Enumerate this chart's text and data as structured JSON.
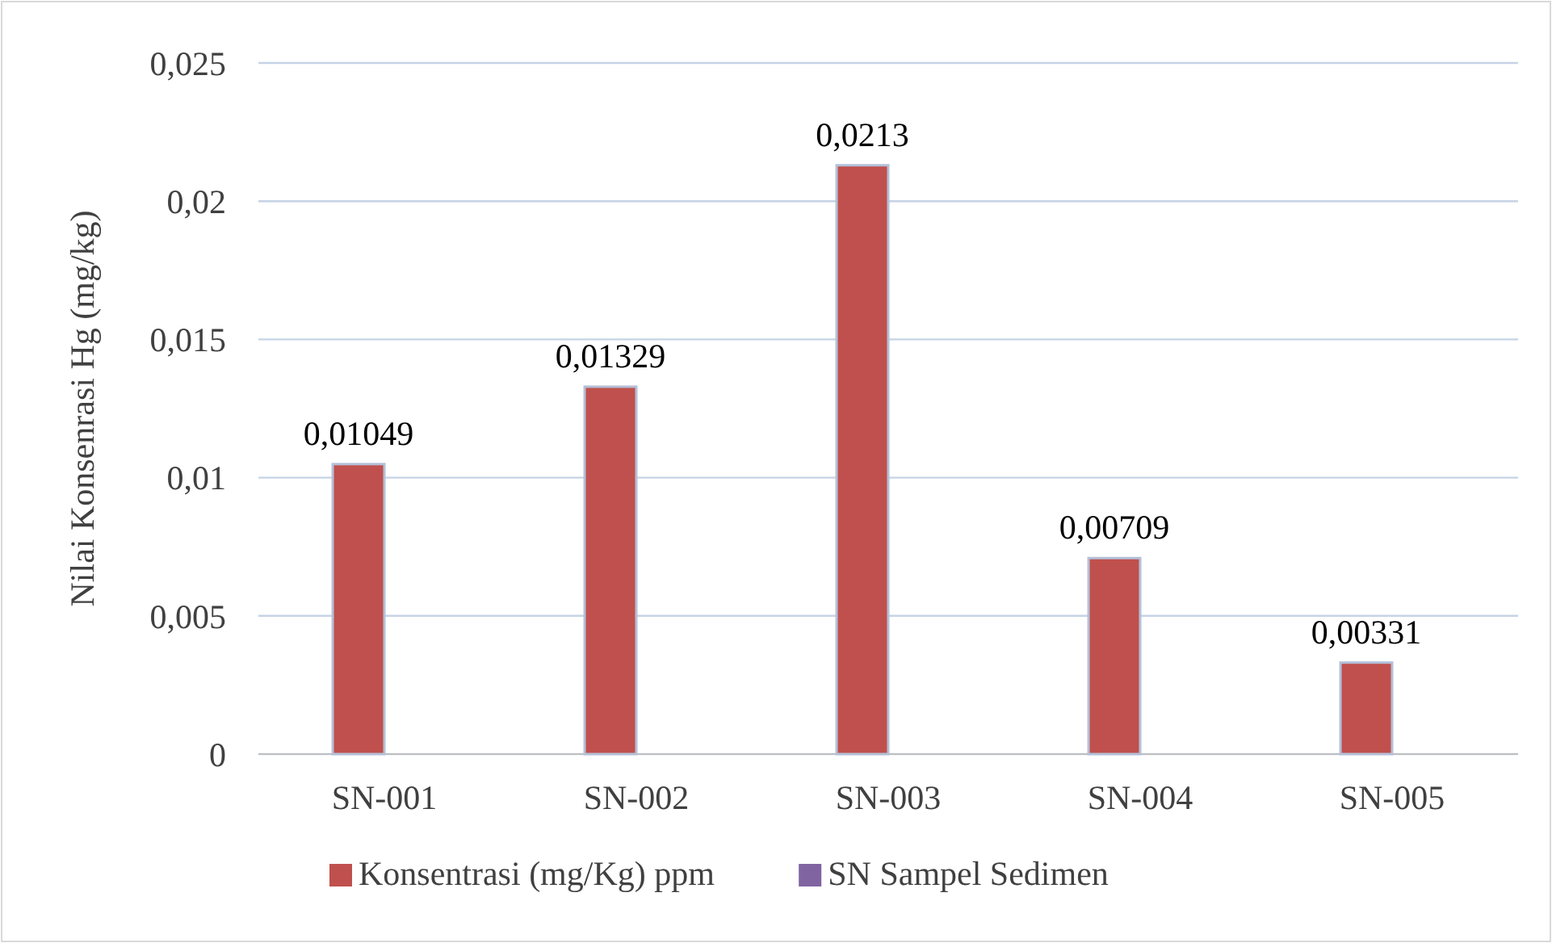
{
  "chart_data": {
    "type": "bar",
    "ylabel": "Nilai Konsenrasi Hg (mg/kg)",
    "categories": [
      "SN-001",
      "SN-002",
      "SN-003",
      "SN-004",
      "SN-005"
    ],
    "series": [
      {
        "name": "Konsentrasi (mg/Kg) ppm",
        "color": "#c0504d",
        "values": [
          0.01049,
          0.01329,
          0.0213,
          0.00709,
          0.00331
        ],
        "value_labels": [
          "0,01049",
          "0,01329",
          "0,0213",
          "0,00709",
          "0,00331"
        ]
      },
      {
        "name": "SN Sampel Sedimen",
        "color": "#8064a2",
        "values": [
          null,
          null,
          null,
          null,
          null
        ]
      }
    ],
    "ylim": [
      0,
      0.025
    ],
    "yticks": [
      0,
      {
        "value": 0.005,
        "label": "0,005"
      },
      {
        "value": 0.01,
        "label": "0,01"
      },
      {
        "value": 0.015,
        "label": "0,015"
      },
      {
        "value": 0.02,
        "label": "0,02"
      },
      {
        "value": 0.025,
        "label": "0,025"
      }
    ],
    "grid": "y",
    "legend": "bottom"
  }
}
